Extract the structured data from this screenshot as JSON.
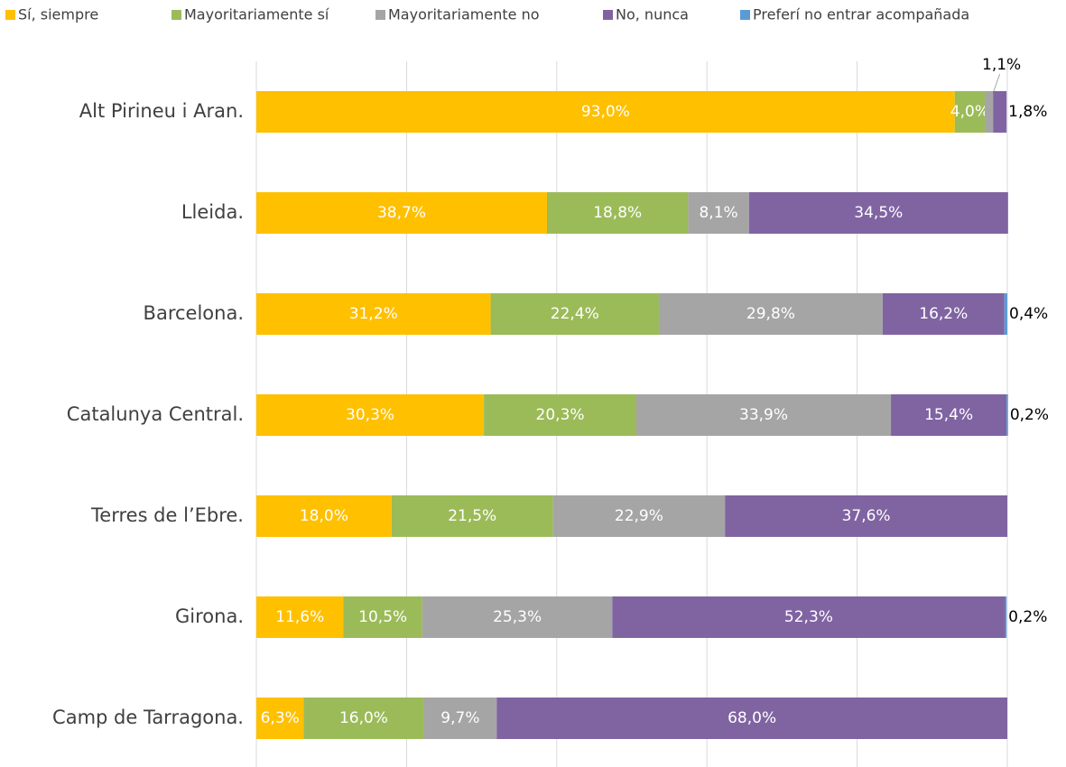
{
  "chart_data": {
    "type": "stacked-bar-horizontal",
    "categories": [
      "Alt Pirineu i Aran.",
      "Lleida.",
      "Barcelona.",
      "Catalunya Central.",
      "Terres de l’Ebre.",
      "Girona.",
      "Camp de Tarragona."
    ],
    "series": [
      {
        "name": "Sí, siempre",
        "color": "#FFC000",
        "values": [
          93.0,
          38.7,
          31.2,
          30.3,
          18.0,
          11.6,
          6.3
        ],
        "value_labels": [
          "93,0%",
          "38,7%",
          "31,2%",
          "30,3%",
          "18,0%",
          "11,6%",
          "6,3%"
        ]
      },
      {
        "name": "Mayoritariamente sí",
        "color": "#9BBB59",
        "values": [
          4.0,
          18.8,
          22.4,
          20.3,
          21.5,
          10.5,
          16.0
        ],
        "value_labels": [
          "4,0%",
          "18,8%",
          "22,4%",
          "20,3%",
          "21,5%",
          "10,5%",
          "16,0%"
        ]
      },
      {
        "name": "Mayoritariamente no",
        "color": "#A5A5A5",
        "values": [
          1.1,
          8.1,
          29.8,
          33.9,
          22.9,
          25.3,
          9.7
        ],
        "value_labels": [
          "1,1%",
          "8,1%",
          "29,8%",
          "33,9%",
          "22,9%",
          "25,3%",
          "9,7%"
        ]
      },
      {
        "name": "No, nunca",
        "color": "#8064A2",
        "values": [
          1.8,
          34.5,
          16.2,
          15.4,
          37.6,
          52.3,
          68.0
        ],
        "value_labels": [
          "1,8%",
          "34,5%",
          "16,2%",
          "15,4%",
          "37,6%",
          "52,3%",
          "68,0%"
        ]
      },
      {
        "name": "Preferí no entrar acompañada",
        "color": "#5B9BD5",
        "values": [
          null,
          null,
          0.4,
          0.2,
          null,
          0.2,
          null
        ],
        "value_labels": [
          null,
          null,
          "0,4%",
          "0,2%",
          null,
          "0,2%",
          null
        ]
      }
    ],
    "xlim": [
      0,
      100
    ],
    "xticks": [
      0,
      20,
      40,
      60,
      80,
      100
    ],
    "grid": true,
    "legend": "top"
  }
}
